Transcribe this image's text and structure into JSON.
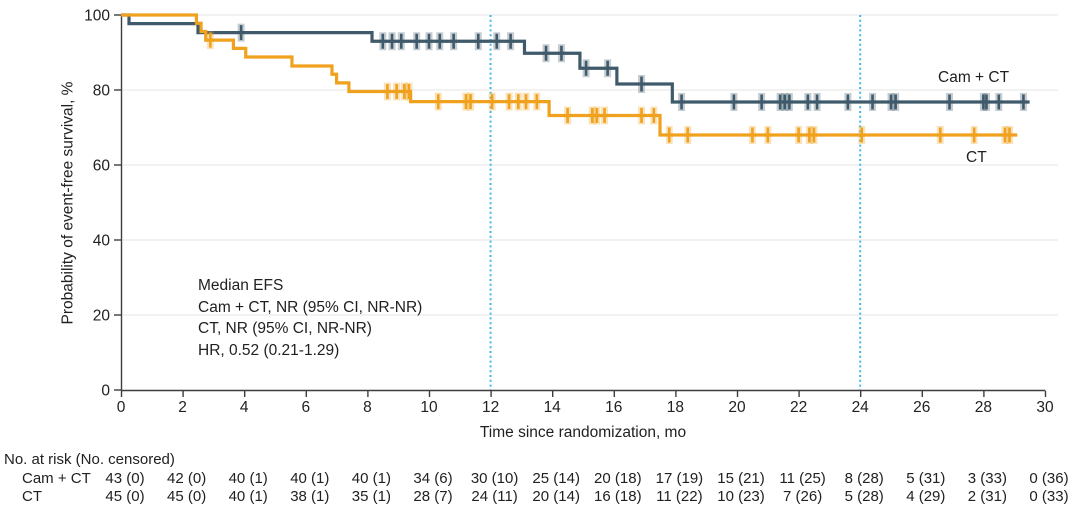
{
  "colors": {
    "cam_ct": "#3F5A6B",
    "ct": "#F0A11D",
    "cam_ct_halo": "rgba(63,90,107,0.30)",
    "ct_halo": "rgba(240,161,29,0.30)",
    "reference_line": "#3FB8E8",
    "gridline": "#EBEBEB",
    "axis": "#3D3D3D",
    "text": "#212121",
    "background": "#FFFFFF"
  },
  "chart_data": {
    "type": "line",
    "subtype": "kaplan-meier-step",
    "title": "",
    "xlabel": "Time since randomization, mo",
    "ylabel": "Probability of event-free survival, %",
    "xlim": [
      0,
      30
    ],
    "ylim": [
      0,
      100
    ],
    "x_ticks": [
      0,
      2,
      4,
      6,
      8,
      10,
      12,
      14,
      16,
      18,
      20,
      22,
      24,
      26,
      28,
      30
    ],
    "y_ticks": [
      0,
      20,
      40,
      60,
      80,
      100
    ],
    "grid": "horizontal",
    "reference_lines_x": [
      12,
      24
    ],
    "legend_position": "right-of-curves",
    "series": [
      {
        "name": "Cam + CT",
        "legend_label": "Cam + CT",
        "color": "#3F5A6B",
        "start_value": 100,
        "end_time": 29.5,
        "steps": [
          [
            0.26,
            97.7
          ],
          [
            2.5,
            95.3
          ],
          [
            8.15,
            93.0
          ],
          [
            13.1,
            89.8
          ],
          [
            14.9,
            85.8
          ],
          [
            16.1,
            81.6
          ],
          [
            17.9,
            76.8
          ]
        ],
        "censor_times": [
          3.9,
          8.5,
          8.8,
          9.1,
          9.6,
          10.0,
          10.35,
          10.8,
          11.6,
          12.2,
          12.65,
          13.8,
          14.3,
          15.1,
          15.8,
          16.9,
          18.2,
          19.9,
          20.8,
          21.4,
          21.55,
          21.7,
          22.3,
          22.6,
          23.6,
          24.4,
          25.0,
          25.15,
          26.9,
          28.0,
          28.1,
          28.5,
          29.3
        ]
      },
      {
        "name": "CT",
        "legend_label": "CT",
        "color": "#F0A11D",
        "start_value": 100,
        "end_time": 29.1,
        "steps": [
          [
            2.45,
            97.8
          ],
          [
            2.6,
            95.6
          ],
          [
            2.75,
            93.3
          ],
          [
            3.65,
            91.1
          ],
          [
            4.05,
            88.8
          ],
          [
            5.55,
            86.4
          ],
          [
            6.85,
            84.2
          ],
          [
            7.0,
            81.9
          ],
          [
            7.4,
            79.6
          ],
          [
            9.4,
            76.9
          ],
          [
            13.9,
            73.2
          ],
          [
            17.5,
            68.0
          ]
        ],
        "censor_times": [
          2.9,
          8.65,
          8.95,
          9.2,
          9.35,
          10.3,
          11.2,
          11.35,
          12.05,
          12.6,
          12.9,
          13.15,
          13.5,
          14.5,
          15.3,
          15.45,
          15.7,
          16.9,
          17.3,
          17.8,
          18.4,
          20.5,
          21.0,
          22.0,
          22.35,
          22.5,
          24.05,
          26.6,
          27.7,
          28.7,
          28.85
        ]
      }
    ],
    "annotation": {
      "lines": [
        "Median EFS",
        "Cam + CT, NR (95% CI, NR-NR)",
        "CT, NR (95% CI, NR-NR)",
        "HR, 0.52 (0.21-1.29)"
      ]
    },
    "risk_table": {
      "header": "No. at risk (No. censored)",
      "times": [
        0,
        2,
        4,
        6,
        8,
        10,
        12,
        14,
        16,
        18,
        20,
        22,
        24,
        26,
        28,
        30
      ],
      "rows": [
        {
          "label": "Cam + CT",
          "values": [
            "43 (0)",
            "42 (0)",
            "40 (1)",
            "40 (1)",
            "40 (1)",
            "34 (6)",
            "30 (10)",
            "25 (14)",
            "20 (18)",
            "17 (19)",
            "15 (21)",
            "11 (25)",
            "8 (28)",
            "5 (31)",
            "3 (33)",
            "0 (36)"
          ]
        },
        {
          "label": "CT",
          "values": [
            "45 (0)",
            "45 (0)",
            "40 (1)",
            "38 (1)",
            "35 (1)",
            "28 (7)",
            "24 (11)",
            "20 (14)",
            "16 (18)",
            "11 (22)",
            "10 (23)",
            "7 (26)",
            "5 (28)",
            "4 (29)",
            "2 (31)",
            "0 (33)"
          ]
        }
      ]
    }
  }
}
